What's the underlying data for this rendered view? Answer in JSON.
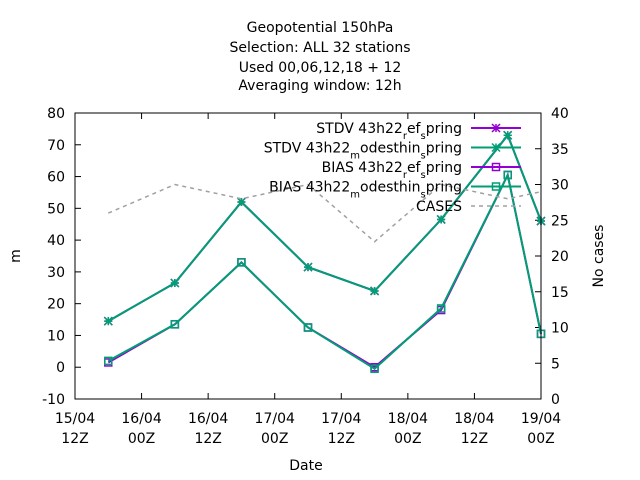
{
  "chart_data": {
    "type": "line",
    "title_lines": [
      "Geopotential 150hPa",
      "Selection: ALL      32 stations",
      "Used  00,06,12,18  + 12",
      "Averaging window: 12h"
    ],
    "xlabel": "Date",
    "ylabel": "m",
    "y2label": "No cases",
    "ylim": [
      -10,
      80
    ],
    "yticks": [
      -10,
      0,
      10,
      20,
      30,
      40,
      50,
      60,
      70,
      80
    ],
    "y2lim": [
      0,
      40
    ],
    "y2ticks": [
      0,
      5,
      10,
      15,
      20,
      25,
      30,
      35,
      40
    ],
    "xlim": [
      "2022-04-15 12Z",
      "2022-04-19 00Z"
    ],
    "xticks": [
      {
        "line1": "15/04",
        "line2": "12Z"
      },
      {
        "line1": "16/04",
        "line2": "00Z"
      },
      {
        "line1": "16/04",
        "line2": "12Z"
      },
      {
        "line1": "17/04",
        "line2": "00Z"
      },
      {
        "line1": "17/04",
        "line2": "12Z"
      },
      {
        "line1": "18/04",
        "line2": "00Z"
      },
      {
        "line1": "18/04",
        "line2": "12Z"
      },
      {
        "line1": "19/04",
        "line2": "00Z"
      }
    ],
    "x": [
      "2022-04-15 18Z",
      "2022-04-16 06Z",
      "2022-04-16 18Z",
      "2022-04-17 06Z",
      "2022-04-17 18Z",
      "2022-04-18 06Z",
      "2022-04-18 18Z",
      "2022-04-19 00Z"
    ],
    "legend_position": "top-right",
    "grid": false,
    "series": [
      {
        "name_main": "STDV 43h22",
        "name_parts": [
          {
            "t": "STDV 43h22",
            "sub": false
          },
          {
            "t": "r",
            "sub": true
          },
          {
            "t": "ef",
            "sub": false
          },
          {
            "t": "s",
            "sub": true
          },
          {
            "t": "pring",
            "sub": false
          }
        ],
        "axis": "y1",
        "color": "#9400d3",
        "dash": "",
        "marker": "star",
        "values": [
          14.5,
          26.5,
          52,
          31.5,
          24,
          46.5,
          73,
          46
        ]
      },
      {
        "name_main": "STDV 43h22",
        "name_parts": [
          {
            "t": "STDV 43h22",
            "sub": false
          },
          {
            "t": "m",
            "sub": true
          },
          {
            "t": "odesthin",
            "sub": false
          },
          {
            "t": "s",
            "sub": true
          },
          {
            "t": "pring",
            "sub": false
          }
        ],
        "axis": "y1",
        "color": "#009e73",
        "dash": "",
        "marker": "star",
        "values": [
          14.5,
          26.5,
          52,
          31.5,
          24,
          46.5,
          73,
          46
        ]
      },
      {
        "name_main": "BIAS 43h22",
        "name_parts": [
          {
            "t": "BIAS 43h22",
            "sub": false
          },
          {
            "t": "r",
            "sub": true
          },
          {
            "t": "ef",
            "sub": false
          },
          {
            "t": "s",
            "sub": true
          },
          {
            "t": "pring",
            "sub": false
          }
        ],
        "axis": "y1",
        "color": "#9400d3",
        "dash": "",
        "marker": "square",
        "values": [
          1.5,
          13.5,
          33,
          12.5,
          0,
          18,
          60.5,
          10.5
        ]
      },
      {
        "name_main": "BIAS 43h22",
        "name_parts": [
          {
            "t": "BIAS 43h22",
            "sub": false
          },
          {
            "t": "m",
            "sub": true
          },
          {
            "t": "odesthin",
            "sub": false
          },
          {
            "t": "s",
            "sub": true
          },
          {
            "t": "pring",
            "sub": false
          }
        ],
        "axis": "y1",
        "color": "#009e73",
        "dash": "",
        "marker": "square",
        "values": [
          2,
          13.5,
          33,
          12.5,
          -0.5,
          18.5,
          60.5,
          10.5
        ]
      },
      {
        "name_main": "CASES",
        "name_parts": [
          {
            "t": "CASES",
            "sub": false
          }
        ],
        "axis": "y2",
        "color": "#a0a0a0",
        "dash": "4,4",
        "marker": "none",
        "values": [
          26,
          30,
          28,
          30,
          22,
          30,
          28,
          29
        ]
      }
    ]
  }
}
